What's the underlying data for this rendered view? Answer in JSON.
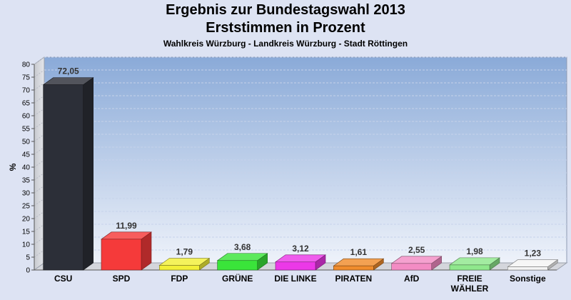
{
  "chart_data": {
    "type": "bar",
    "title": "Ergebnis zur Bundestagswahl 2013",
    "subtitle": "Erststimmen in Prozent",
    "subtitle2": "Wahlkreis Würzburg - Landkreis Würzburg - Stadt Röttingen",
    "ylabel": "%",
    "ylim": [
      0,
      80
    ],
    "yticks": [
      0,
      5,
      10,
      15,
      20,
      25,
      30,
      35,
      40,
      45,
      50,
      55,
      60,
      65,
      70,
      75,
      80
    ],
    "grid": true,
    "categories": [
      {
        "lines": [
          "CSU"
        ]
      },
      {
        "lines": [
          "SPD"
        ]
      },
      {
        "lines": [
          "FDP"
        ]
      },
      {
        "lines": [
          "GRÜNE"
        ]
      },
      {
        "lines": [
          "DIE LINKE"
        ]
      },
      {
        "lines": [
          "PIRATEN"
        ]
      },
      {
        "lines": [
          "AfD"
        ]
      },
      {
        "lines": [
          "FREIE",
          "WÄHLER"
        ]
      },
      {
        "lines": [
          "Sonstige"
        ]
      }
    ],
    "values": [
      72.05,
      11.99,
      1.79,
      3.68,
      3.12,
      1.61,
      2.55,
      1.98,
      1.23
    ],
    "value_labels": [
      "72,05",
      "11,99",
      "1,79",
      "3,68",
      "3,12",
      "1,61",
      "2,55",
      "1,98",
      "1,23"
    ],
    "colors": [
      "#2c2f38",
      "#f53a3a",
      "#f2ef38",
      "#3ae43a",
      "#ec38e8",
      "#f08c2c",
      "#f38cc4",
      "#8fe88c",
      "#f4f4f4"
    ]
  }
}
